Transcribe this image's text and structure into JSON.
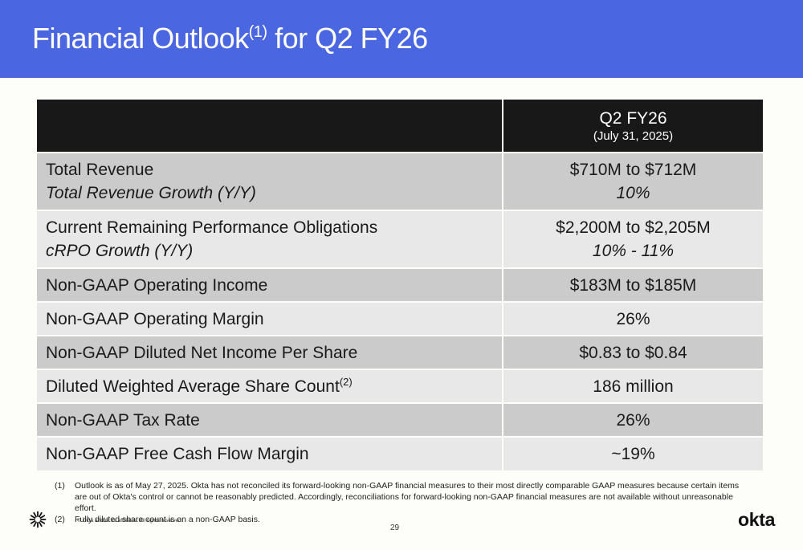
{
  "header": {
    "title": "Financial Outlook",
    "title_note": "(1)",
    "title_suffix": " for Q2 FY26"
  },
  "table": {
    "column_header": "Q2 FY26",
    "column_subheader": "(July 31, 2025)",
    "rows": [
      {
        "label": "Total Revenue",
        "value": "$710M to $712M"
      },
      {
        "label": "Total Revenue Growth (Y/Y)",
        "value": "10%"
      },
      {
        "label": "Current Remaining Performance Obligations",
        "value": "$2,200M to $2,205M"
      },
      {
        "label": "cRPO Growth (Y/Y)",
        "value": "10% - 11%"
      },
      {
        "label": "Non-GAAP Operating Income",
        "value": "$183M to $185M"
      },
      {
        "label": "Non-GAAP Operating Margin",
        "value": "26%"
      },
      {
        "label": "Non-GAAP Diluted Net Income Per Share",
        "value": "$0.83 to $0.84"
      },
      {
        "label": "Diluted Weighted Average Share Count",
        "note": "(2)",
        "value": "186 million"
      },
      {
        "label": "Non-GAAP Tax Rate",
        "value": "26%"
      },
      {
        "label": "Non-GAAP Free Cash Flow Margin",
        "value": "~19%"
      }
    ]
  },
  "footnotes": [
    {
      "num": "(1)",
      "text": "Outlook is as of May 27, 2025. Okta has not reconciled its forward-looking non-GAAP financial measures to their most directly comparable GAAP measures because certain items are out of Okta's control or cannot be reasonably predicted. Accordingly, reconciliations for forward-looking non-GAAP financial measures are not available without unreasonable effort."
    },
    {
      "num": "(2)",
      "text": "Fully diluted share count is on a non-GAAP basis."
    }
  ],
  "footer": {
    "copyright": "© Okta and/or its affiliates. All rights reserved.",
    "page_number": "29",
    "logo_text": "okta"
  },
  "icons": {
    "brand_mark": "okta-sunburst-icon"
  },
  "colors": {
    "banner": "#4a66e0",
    "table_header": "#181818",
    "row_dark": "#cbcbcb",
    "row_light": "#e8e8e8"
  }
}
